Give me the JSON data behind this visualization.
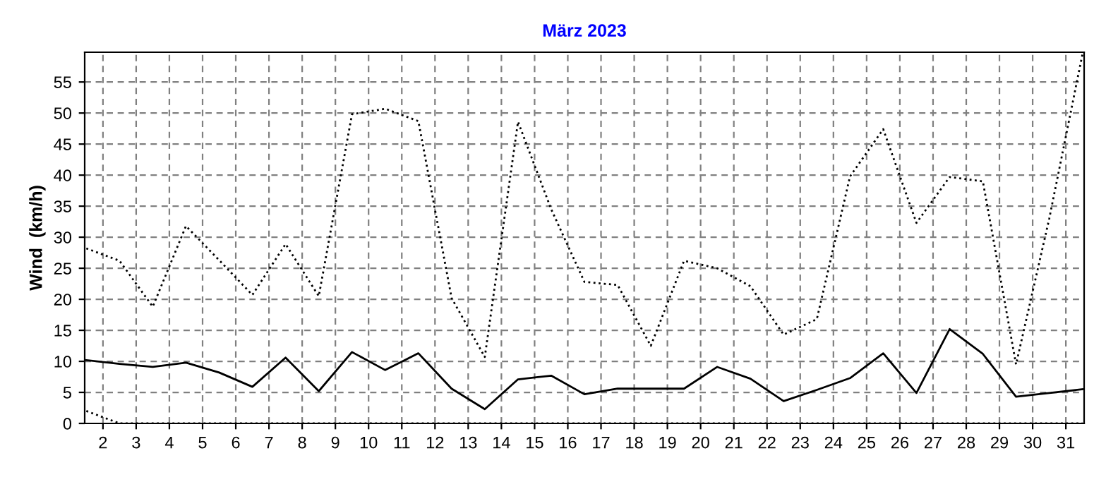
{
  "chart_data": {
    "type": "line",
    "title": "März 2023",
    "ylabel": "Wind  (km/h)",
    "x": [
      1.5,
      2.5,
      3.5,
      4.5,
      5.5,
      6.5,
      7.5,
      8.5,
      9.5,
      10.5,
      11.5,
      12.5,
      13.5,
      14.5,
      15.5,
      16.5,
      17.5,
      18.5,
      19.5,
      20.5,
      21.5,
      22.5,
      23.5,
      24.5,
      25.5,
      26.5,
      27.5,
      28.5,
      29.5,
      30.5,
      31.5
    ],
    "series": [
      {
        "color": "#000000",
        "line_style": "dotted",
        "values": [
          28.2,
          26.2,
          18.8,
          31.8,
          26.3,
          20.7,
          28.9,
          20.5,
          49.8,
          50.7,
          48.7,
          20.2,
          10.7,
          48.6,
          34.5,
          22.8,
          22.3,
          12.5,
          26.2,
          25,
          22.1,
          14.3,
          16.8,
          39.8,
          47.4,
          32.3,
          39.7,
          39,
          9.5,
          33,
          59.5
        ]
      },
      {
        "color": "#000000",
        "line_style": "solid",
        "values": [
          10.2,
          9.6,
          9.1,
          9.8,
          8.2,
          5.9,
          10.6,
          5.2,
          11.5,
          8.6,
          11.3,
          5.6,
          2.3,
          7.1,
          7.7,
          4.7,
          5.6,
          5.6,
          5.6,
          9.1,
          7.2,
          3.6,
          5.4,
          7.3,
          11.3,
          4.9,
          15.2,
          11.2,
          4.3,
          4.9,
          5.5
        ]
      },
      {
        "color": "#000000",
        "line_style": "dotted",
        "values": [
          2,
          0,
          0,
          0,
          0,
          0,
          0,
          0,
          0,
          0,
          0,
          0,
          0,
          0,
          0,
          0,
          0,
          0,
          0,
          0,
          0,
          0,
          0,
          0,
          0,
          0,
          0,
          0,
          0,
          0,
          0
        ]
      }
    ],
    "xlim": [
      1.45,
      31.55
    ],
    "xticks": [
      2,
      3,
      4,
      5,
      6,
      7,
      8,
      9,
      10,
      11,
      12,
      13,
      14,
      15,
      16,
      17,
      18,
      19,
      20,
      21,
      22,
      23,
      24,
      25,
      26,
      27,
      28,
      29,
      30,
      31
    ],
    "ylim": [
      0,
      59.8
    ],
    "yticks": [
      0,
      5,
      10,
      15,
      20,
      25,
      30,
      35,
      40,
      45,
      50,
      55
    ],
    "grid": true,
    "marker": "none",
    "legend": false
  }
}
